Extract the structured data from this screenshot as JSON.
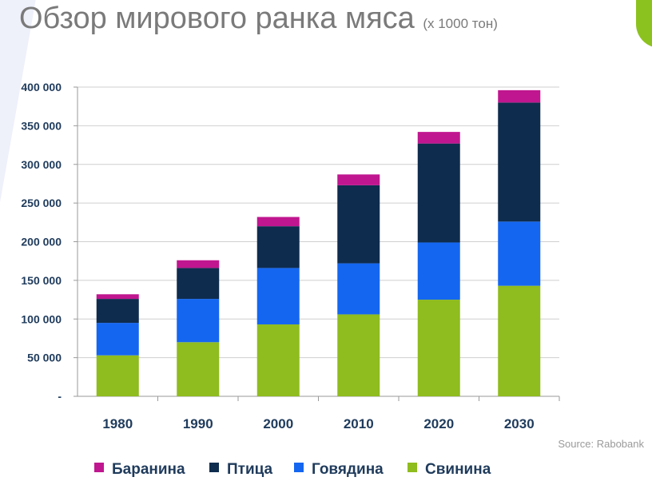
{
  "title": "Обзор мирового ранка мяса",
  "title_unit": "(x 1000 тон)",
  "source": "Source: Rabobank",
  "chart_data": {
    "type": "bar",
    "stacked": true,
    "title": "Обзор мирового ранка мяса (x 1000 тон)",
    "categories": [
      "1980",
      "1990",
      "2000",
      "2010",
      "2020",
      "2030"
    ],
    "series": [
      {
        "name": "Свинина",
        "color": "#8fbc1e",
        "values": [
          53000,
          70000,
          93000,
          106000,
          125000,
          143000
        ]
      },
      {
        "name": "Говядина",
        "color": "#1466f0",
        "values": [
          42000,
          56000,
          73000,
          66000,
          74000,
          83000
        ]
      },
      {
        "name": "Птица",
        "color": "#0e2c4e",
        "values": [
          31000,
          40000,
          54000,
          101000,
          128000,
          154000
        ]
      },
      {
        "name": "Баранина",
        "color": "#c0168f",
        "values": [
          6000,
          10000,
          12000,
          14000,
          15000,
          16000
        ]
      }
    ],
    "legend_order": [
      "Баранина",
      "Птица",
      "Говядина",
      "Свинина"
    ],
    "ylim": [
      0,
      400000
    ],
    "yticks": [
      0,
      50000,
      100000,
      150000,
      200000,
      250000,
      300000,
      350000,
      400000
    ],
    "ytick_labels": [
      "-",
      "50 000",
      "100 000",
      "150 000",
      "200 000",
      "250 000",
      "300 000",
      "350 000",
      "400 000"
    ],
    "grid": true,
    "legend_position": "bottom"
  }
}
